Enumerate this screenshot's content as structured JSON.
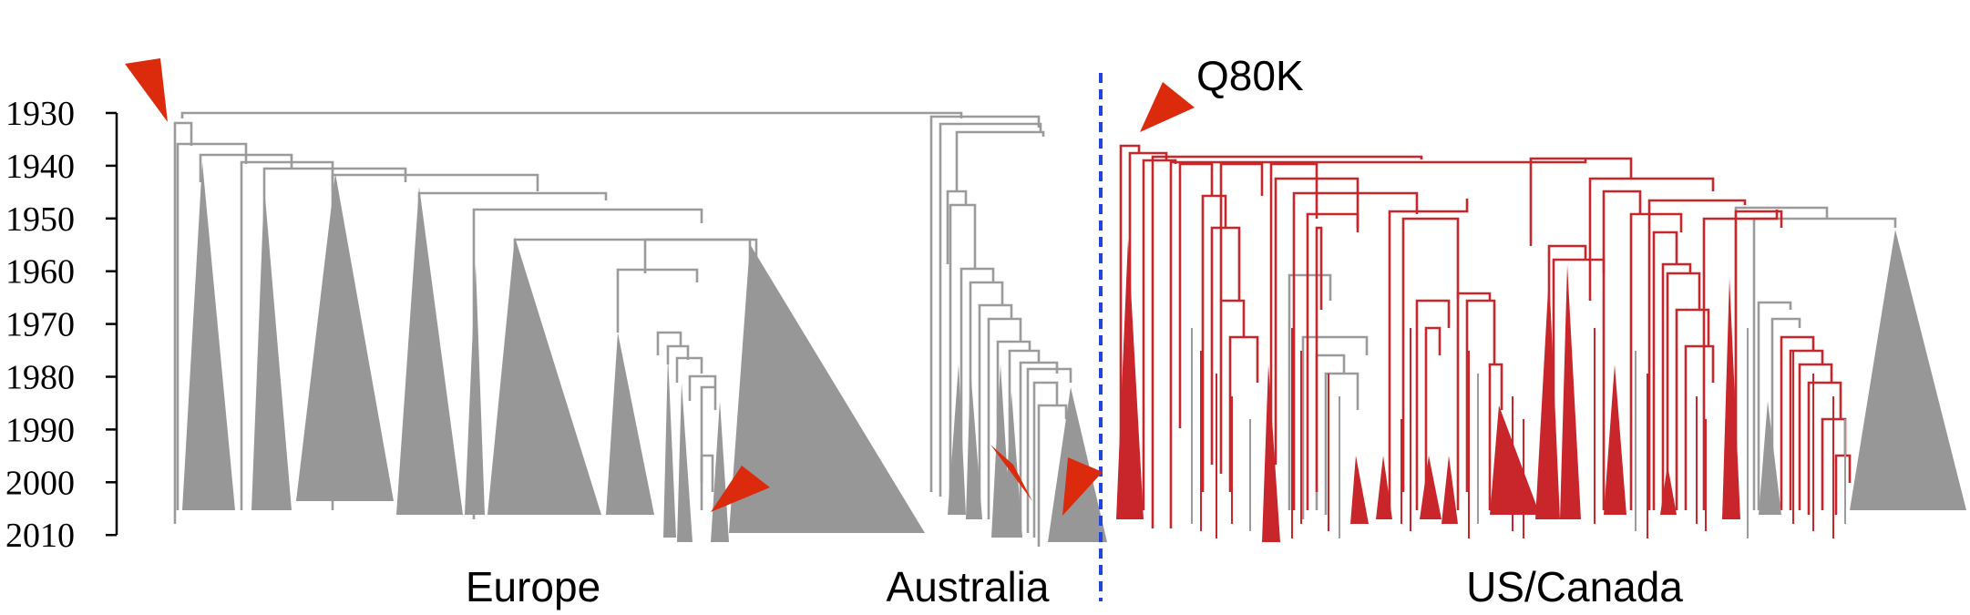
{
  "axis": {
    "ticks": [
      "1930",
      "1940",
      "1950",
      "1960",
      "1970",
      "1980",
      "1990",
      "2000",
      "2010"
    ]
  },
  "regions": [
    {
      "key": "europe",
      "label": "Europe"
    },
    {
      "key": "australia",
      "label": "Australia"
    },
    {
      "key": "us_canada",
      "label": "US/Canada"
    }
  ],
  "callout": {
    "label": "Q80K"
  },
  "colors": {
    "gray_clade": "#979797",
    "gray_branch": "#9b9b9b",
    "red_clade": "#c8262b",
    "red_branch": "#c8262b",
    "arrow": "#dc2a0c",
    "divider": "#2244dd"
  }
}
